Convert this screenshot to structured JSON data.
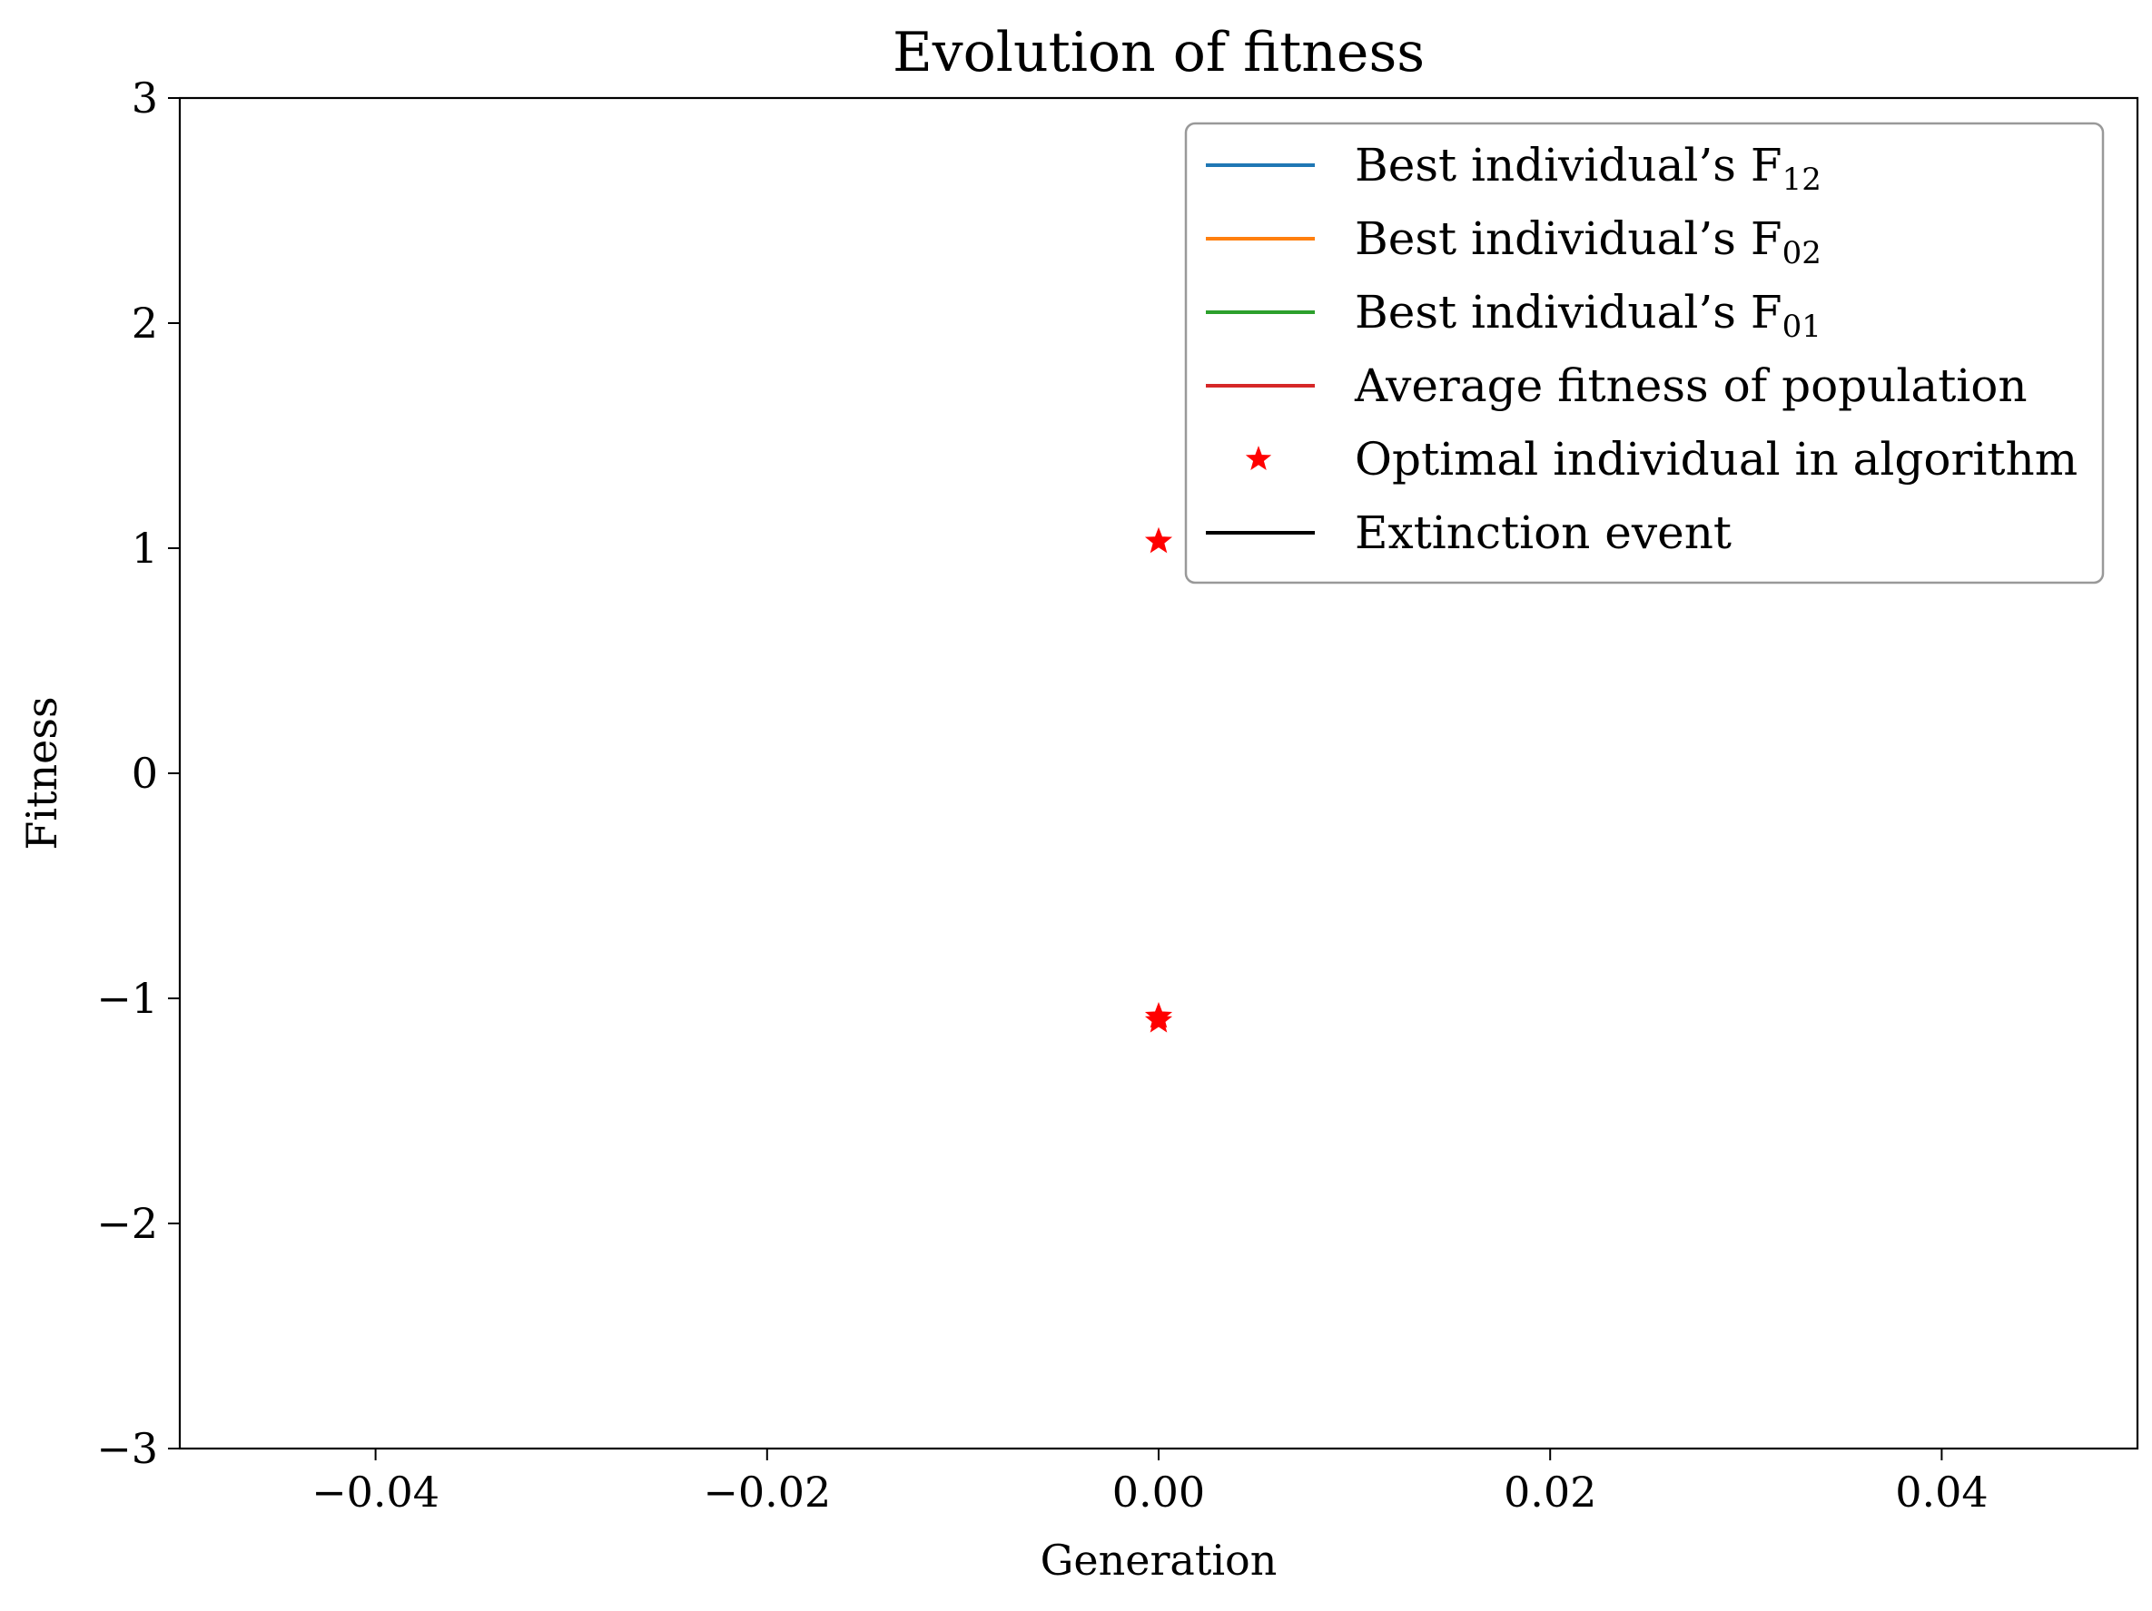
{
  "chart_data": {
    "type": "scatter",
    "title": "Evolution of fitness",
    "xlabel": "Generation",
    "ylabel": "Fitness",
    "xlim": [
      -0.05,
      0.05
    ],
    "ylim": [
      -3,
      3
    ],
    "xticks": [
      {
        "value": -0.04,
        "label": "−0.04"
      },
      {
        "value": -0.02,
        "label": "−0.02"
      },
      {
        "value": 0.0,
        "label": "0.00"
      },
      {
        "value": 0.02,
        "label": "0.02"
      },
      {
        "value": 0.04,
        "label": "0.04"
      }
    ],
    "yticks": [
      {
        "value": 3,
        "label": "3"
      },
      {
        "value": 2,
        "label": "2"
      },
      {
        "value": 1,
        "label": "1"
      },
      {
        "value": 0,
        "label": "0"
      },
      {
        "value": -1,
        "label": "−1"
      },
      {
        "value": -2,
        "label": "−2"
      },
      {
        "value": -3,
        "label": "−3"
      }
    ],
    "grid": false,
    "legend_position": "top-right",
    "series": [
      {
        "name": "Best individual’s F",
        "sub": "12",
        "kind": "line",
        "color": "#1f77b4",
        "points": []
      },
      {
        "name": "Best individual’s F",
        "sub": "02",
        "kind": "line",
        "color": "#ff7f0e",
        "points": []
      },
      {
        "name": "Best individual’s F",
        "sub": "01",
        "kind": "line",
        "color": "#2ca02c",
        "points": []
      },
      {
        "name": "Average fitness of population",
        "kind": "line",
        "color": "#d62728",
        "points": []
      },
      {
        "name": "Optimal individual in algorithm",
        "kind": "marker",
        "color": "#ff0000",
        "points": [
          {
            "x": 0.0,
            "y": 1.03
          },
          {
            "x": 0.0,
            "y": -1.08
          },
          {
            "x": 0.0,
            "y": -1.1
          }
        ]
      },
      {
        "name": "Extinction event",
        "kind": "line",
        "color": "#000000",
        "points": []
      }
    ]
  }
}
